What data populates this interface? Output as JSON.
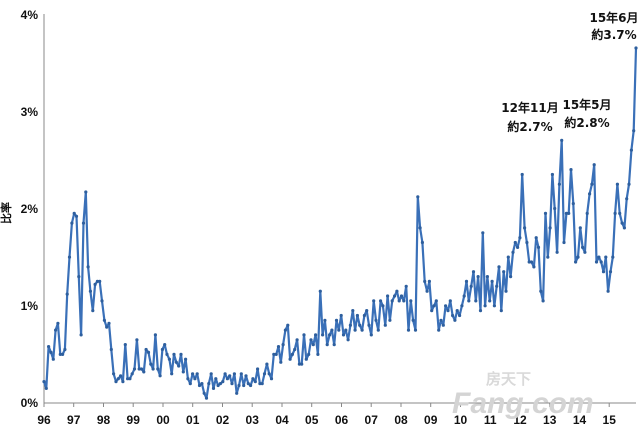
{
  "chart_data": {
    "type": "line",
    "ylabel": "比率",
    "y_ticks": [
      "0%",
      "1%",
      "2%",
      "3%",
      "4%"
    ],
    "ylim": [
      0,
      4
    ],
    "x_ticks": [
      "96",
      "97",
      "98",
      "99",
      "00",
      "01",
      "02",
      "03",
      "04",
      "05",
      "06",
      "07",
      "08",
      "09",
      "10",
      "11",
      "12",
      "13",
      "14",
      "15"
    ],
    "x_start_year": 1996,
    "xlim_years": [
      1996,
      2015.9
    ],
    "grid": false,
    "color": "#3a70b8",
    "series": [
      {
        "values": [
          0.22,
          0.15,
          0.58,
          0.52,
          0.45,
          0.75,
          0.82,
          0.5,
          0.5,
          0.55,
          1.12,
          1.5,
          1.85,
          1.95,
          1.92,
          1.3,
          0.7,
          1.85,
          2.17,
          1.4,
          1.15,
          0.95,
          1.22,
          1.25,
          1.25,
          1.05,
          0.85,
          0.78,
          0.82,
          0.55,
          0.3,
          0.22,
          0.25,
          0.28,
          0.22,
          0.6,
          0.25,
          0.25,
          0.3,
          0.35,
          0.65,
          0.35,
          0.35,
          0.32,
          0.55,
          0.52,
          0.4,
          0.35,
          0.7,
          0.35,
          0.28,
          0.55,
          0.6,
          0.5,
          0.45,
          0.3,
          0.5,
          0.42,
          0.38,
          0.5,
          0.32,
          0.45,
          0.25,
          0.2,
          0.3,
          0.25,
          0.3,
          0.18,
          0.2,
          0.1,
          0.05,
          0.2,
          0.3,
          0.15,
          0.25,
          0.18,
          0.2,
          0.22,
          0.3,
          0.25,
          0.28,
          0.2,
          0.3,
          0.1,
          0.18,
          0.3,
          0.18,
          0.28,
          0.2,
          0.18,
          0.25,
          0.22,
          0.35,
          0.2,
          0.2,
          0.3,
          0.4,
          0.3,
          0.25,
          0.5,
          0.5,
          0.58,
          0.42,
          0.6,
          0.75,
          0.8,
          0.45,
          0.5,
          0.55,
          0.65,
          0.4,
          0.4,
          0.7,
          0.45,
          0.5,
          0.65,
          0.6,
          0.7,
          0.5,
          1.15,
          0.7,
          0.85,
          0.6,
          0.7,
          0.75,
          0.6,
          0.85,
          0.75,
          0.9,
          0.7,
          0.75,
          0.65,
          0.8,
          0.95,
          0.75,
          0.9,
          0.8,
          0.75,
          0.9,
          0.95,
          0.8,
          0.7,
          1.05,
          0.85,
          0.75,
          1.05,
          1.0,
          0.8,
          1.1,
          0.85,
          1.05,
          1.1,
          1.15,
          1.05,
          1.1,
          1.05,
          1.2,
          0.75,
          1.05,
          0.85,
          0.75,
          2.12,
          1.8,
          1.65,
          1.25,
          1.15,
          1.25,
          0.95,
          1.0,
          1.05,
          0.75,
          0.85,
          0.8,
          1.0,
          0.95,
          1.05,
          0.9,
          0.85,
          0.95,
          0.9,
          1.0,
          1.1,
          1.25,
          1.05,
          1.2,
          1.35,
          1.05,
          1.3,
          0.95,
          1.75,
          1.0,
          1.3,
          1.05,
          1.25,
          1.0,
          1.2,
          1.4,
          0.95,
          1.35,
          1.15,
          1.5,
          1.3,
          1.55,
          1.65,
          1.6,
          1.7,
          2.35,
          1.8,
          1.65,
          1.45,
          1.45,
          1.4,
          1.7,
          1.6,
          1.15,
          1.05,
          1.95,
          1.5,
          1.8,
          2.35,
          2.0,
          1.55,
          2.25,
          2.7,
          1.65,
          1.95,
          1.95,
          2.4,
          2.05,
          1.45,
          1.5,
          1.8,
          1.6,
          1.55,
          1.95,
          2.15,
          2.25,
          2.45,
          1.45,
          1.5,
          1.45,
          1.35,
          1.5,
          1.15,
          1.35,
          1.5,
          1.95,
          2.25,
          1.95,
          1.85,
          1.8,
          2.1,
          2.25,
          2.6,
          2.8,
          3.65
        ]
      }
    ],
    "annotations": [
      {
        "line1": "15年6月",
        "line2": "約3.7%"
      },
      {
        "line1": "12年11月",
        "line2": "約2.7%"
      },
      {
        "line1": "15年5月",
        "line2": "約2.8%"
      }
    ]
  },
  "watermark": {
    "top": "房天下",
    "bottom": "Fang.com"
  }
}
